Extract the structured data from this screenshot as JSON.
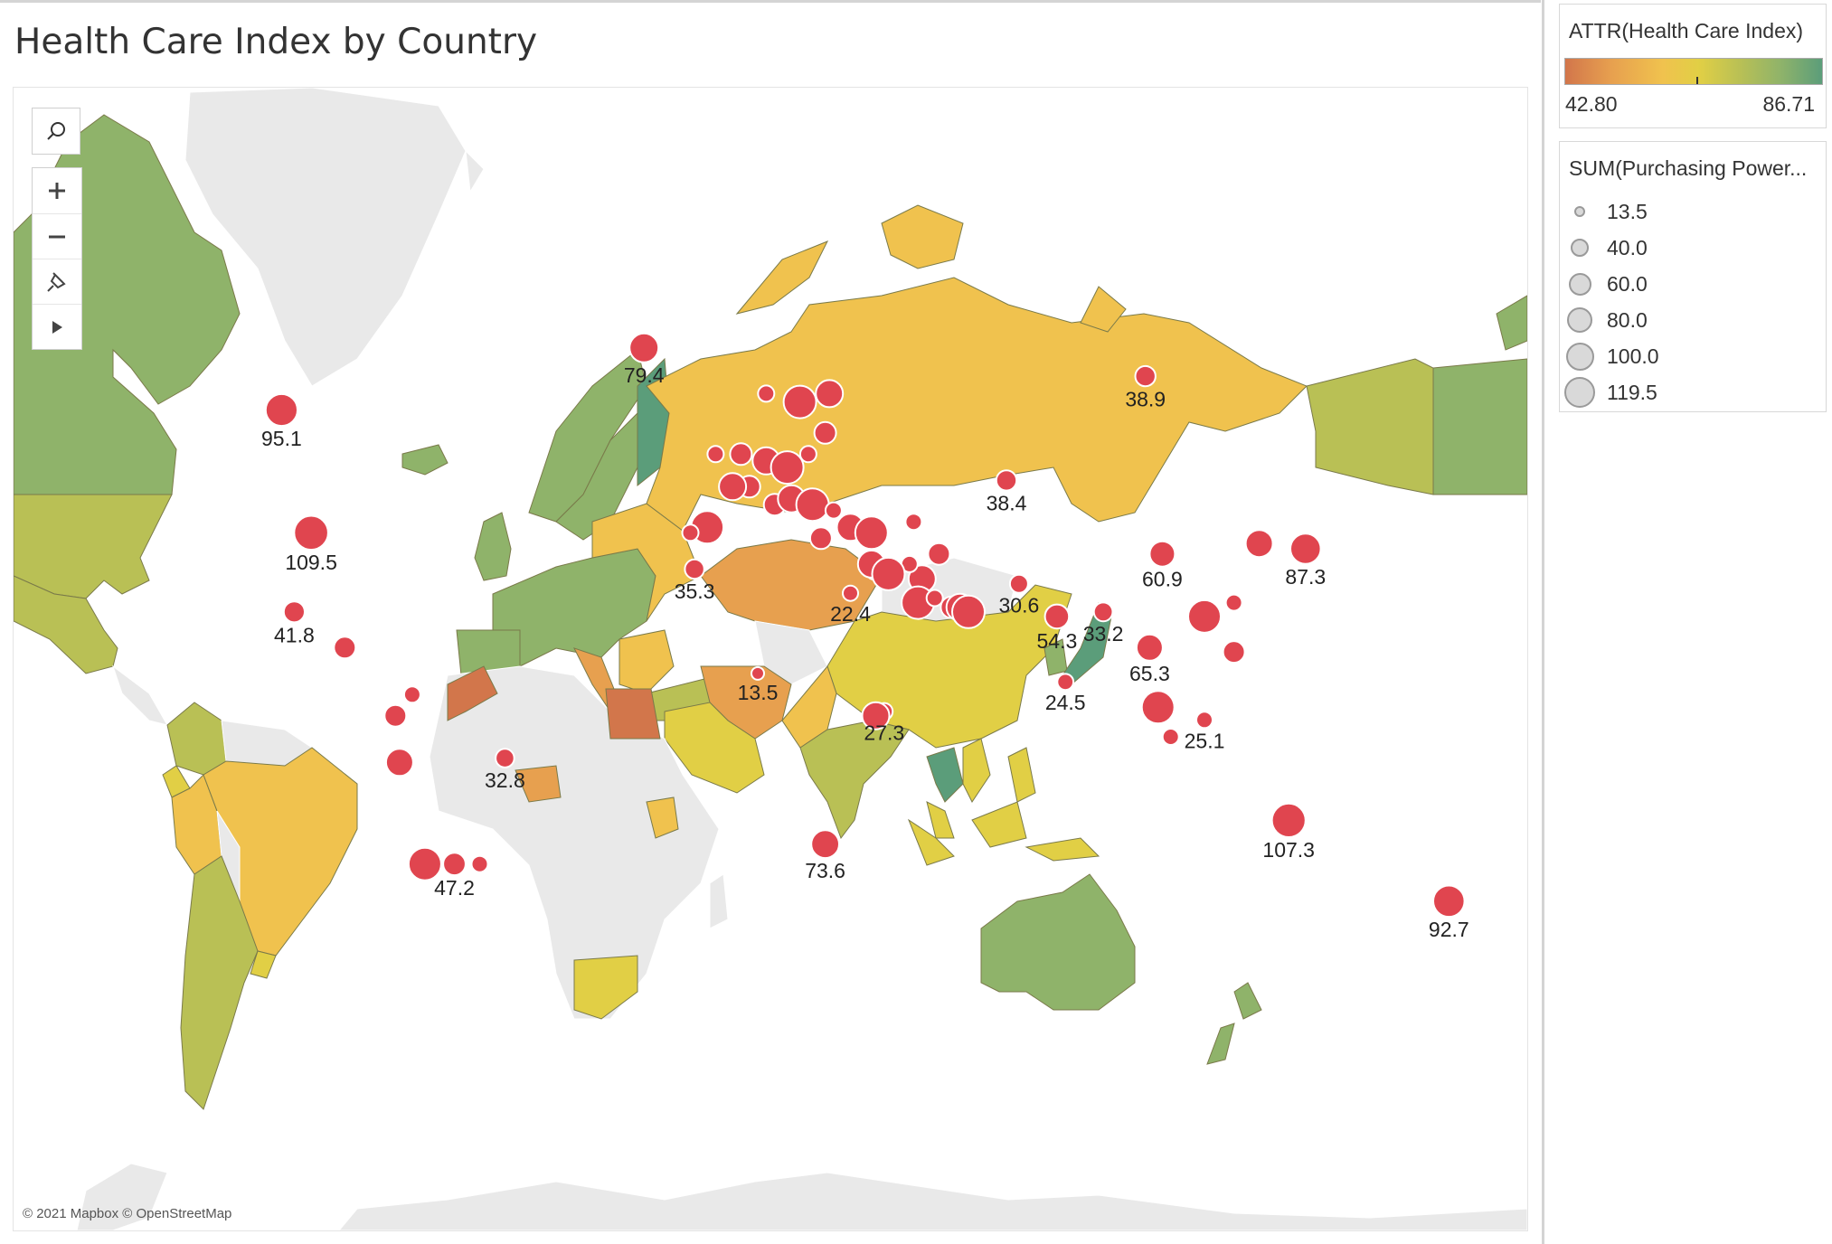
{
  "dashboard": {
    "title": "Health Care Index by Country"
  },
  "map": {
    "attribution": "© 2021 Mapbox © OpenStreetMap",
    "tools": [
      "search-icon",
      "zoom-in-icon",
      "zoom-out-icon",
      "pin-icon",
      "play-icon"
    ]
  },
  "legend_color": {
    "title": "ATTR(Health Care Index)",
    "min_label": "42.80",
    "max_label": "86.71",
    "colors": {
      "low": "#d2764b",
      "mid": "#e1cf45",
      "high": "#5b9d7a"
    }
  },
  "legend_size": {
    "title": "SUM(Purchasing Power...",
    "items": [
      "13.5",
      "40.0",
      "60.0",
      "80.0",
      "100.0",
      "119.5"
    ]
  },
  "mark_color": "#e0454f",
  "chart_data": {
    "type": "map",
    "color_by": "Health Care Index",
    "size_by": "Purchasing Power",
    "labels": [
      {
        "text": "95.1",
        "lon": -105,
        "lat": 58
      },
      {
        "text": "79.4",
        "lon": -19,
        "lat": 65
      },
      {
        "text": "38.9",
        "lon": 100,
        "lat": 62
      },
      {
        "text": "109.5",
        "lon": -98,
        "lat": 39
      },
      {
        "text": "38.4",
        "lon": 67,
        "lat": 48
      },
      {
        "text": "60.9",
        "lon": 104,
        "lat": 35
      },
      {
        "text": "87.3",
        "lon": 138,
        "lat": 36
      },
      {
        "text": "35.3",
        "lon": -7,
        "lat": 32
      },
      {
        "text": "22.4",
        "lon": 30,
        "lat": 27
      },
      {
        "text": "30.6",
        "lon": 70,
        "lat": 29
      },
      {
        "text": "54.3",
        "lon": 79,
        "lat": 22
      },
      {
        "text": "33.2",
        "lon": 90,
        "lat": 23
      },
      {
        "text": "65.3",
        "lon": 101,
        "lat": 15
      },
      {
        "text": "41.8",
        "lon": -102,
        "lat": 23
      },
      {
        "text": "13.5",
        "lon": 8,
        "lat": 9
      },
      {
        "text": "24.5",
        "lon": 81,
        "lat": 7
      },
      {
        "text": "27.3",
        "lon": 38,
        "lat": 0
      },
      {
        "text": "25.1",
        "lon": 114,
        "lat": -2
      },
      {
        "text": "32.8",
        "lon": -52,
        "lat": -11
      },
      {
        "text": "47.2",
        "lon": -64,
        "lat": -34
      },
      {
        "text": "73.6",
        "lon": 24,
        "lat": -30
      },
      {
        "text": "107.3",
        "lon": 134,
        "lat": -25
      },
      {
        "text": "92.7",
        "lon": 172,
        "lat": -41
      }
    ],
    "unlabeled_point_count": 45
  }
}
